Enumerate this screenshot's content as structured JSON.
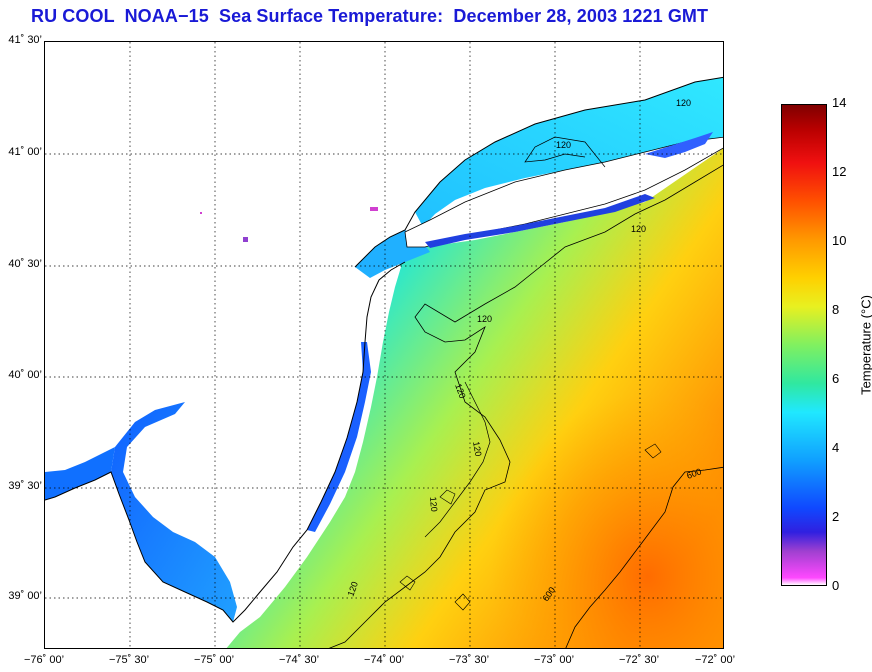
{
  "title": "RU COOL  NOAA−15  Sea Surface Temperature:  December 28, 2003 1221 GMT",
  "latitude_labels": [
    {
      "text": "41˚ 30’",
      "value": 41.5
    },
    {
      "text": "41˚ 00’",
      "value": 41.0
    },
    {
      "text": "40˚ 30’",
      "value": 40.5
    },
    {
      "text": "40˚ 00’",
      "value": 40.0
    },
    {
      "text": "39˚ 30’",
      "value": 39.5
    },
    {
      "text": "39˚ 00’",
      "value": 39.0
    }
  ],
  "longitude_labels": [
    {
      "text": "−76˚ 00’",
      "value": -76.0
    },
    {
      "text": "−75˚ 30’",
      "value": -75.5
    },
    {
      "text": "−75˚ 00’",
      "value": -75.0
    },
    {
      "text": "−74˚ 30’",
      "value": -74.5
    },
    {
      "text": "−74˚ 00’",
      "value": -74.0
    },
    {
      "text": "−73˚ 30’",
      "value": -73.5
    },
    {
      "text": "−73˚ 00’",
      "value": -73.0
    },
    {
      "text": "−72˚ 30’",
      "value": -72.5
    },
    {
      "text": "−72˚ 00’",
      "value": -72.0
    }
  ],
  "colorbar": {
    "label": "Temperature (°C)",
    "ticks": [
      "0",
      "2",
      "4",
      "6",
      "8",
      "10",
      "12",
      "14"
    ],
    "min": 0,
    "max": 14
  },
  "contour_labels": [
    "120",
    "120",
    "120",
    "120",
    "120",
    "120",
    "120",
    "120",
    "600",
    "600"
  ],
  "colors": {
    "title": "#1a1ad6",
    "land": "#ffffff",
    "coast": "#000000"
  }
}
